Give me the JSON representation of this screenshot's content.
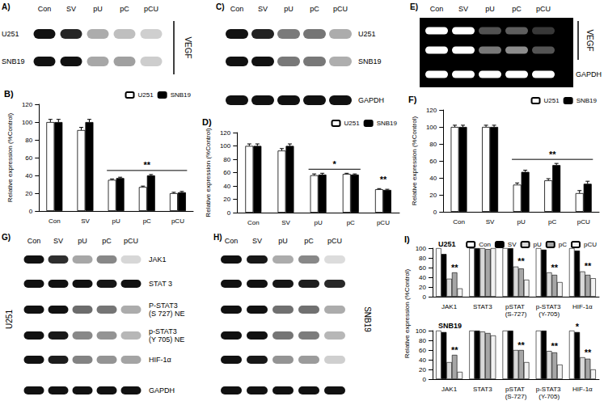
{
  "chart_data": [
    {
      "type": "bar",
      "title": "B)",
      "y_label": "Relative expression (%Control)",
      "categories": [
        "Con",
        "SV",
        "pU",
        "pC",
        "pCU"
      ],
      "series": [
        {
          "name": "U251",
          "color": "#ffffff",
          "values": [
            100,
            91,
            35,
            27,
            20
          ],
          "errors": [
            3,
            3,
            1,
            1,
            1
          ]
        },
        {
          "name": "SNB19",
          "color": "#000000",
          "values": [
            100,
            100,
            37,
            40,
            21
          ],
          "errors": [
            3,
            3,
            1,
            1,
            1
          ]
        }
      ],
      "ylim": [
        0,
        120
      ],
      "yticks": [
        0,
        20,
        40,
        60,
        80,
        100,
        120
      ],
      "grid": false,
      "legend": "upper right",
      "annotations": [
        {
          "text": "**",
          "from": "pU",
          "to": "pCU"
        }
      ]
    },
    {
      "type": "bar",
      "title": "D)",
      "y_label": "Relative expression (%Control)",
      "categories": [
        "Con",
        "SV",
        "pU",
        "pC",
        "pCU"
      ],
      "series": [
        {
          "name": "U251",
          "color": "#ffffff",
          "values": [
            100,
            93,
            56,
            58,
            35
          ],
          "errors": [
            3,
            3,
            2,
            1,
            1
          ]
        },
        {
          "name": "SNB19",
          "color": "#000000",
          "values": [
            100,
            100,
            57,
            57,
            34
          ],
          "errors": [
            3,
            3,
            2,
            1,
            1
          ]
        }
      ],
      "ylim": [
        0,
        120
      ],
      "yticks": [
        0,
        20,
        40,
        60,
        80,
        100,
        120
      ],
      "grid": false,
      "legend": "upper right",
      "annotations": [
        {
          "text": "*",
          "from": "pU",
          "to": "pC"
        },
        {
          "text": "**",
          "from": "pCU",
          "to": "pCU"
        }
      ]
    },
    {
      "type": "bar",
      "title": "F)",
      "y_label": "Relative expression (%Control)",
      "categories": [
        "Con",
        "SV",
        "pU",
        "pC",
        "pCU"
      ],
      "series": [
        {
          "name": "U251",
          "color": "#ffffff",
          "values": [
            100,
            100,
            32,
            37,
            22
          ],
          "errors": [
            2,
            2,
            2,
            2,
            3
          ]
        },
        {
          "name": "SNB19",
          "color": "#000000",
          "values": [
            100,
            100,
            47,
            55,
            33
          ],
          "errors": [
            2,
            2,
            2,
            2,
            3
          ]
        }
      ],
      "ylim": [
        0,
        120
      ],
      "yticks": [
        0,
        20,
        40,
        60,
        80,
        100,
        120
      ],
      "grid": false,
      "legend": "upper right",
      "annotations": [
        {
          "text": "**",
          "from": "pU",
          "to": "pCU"
        }
      ]
    },
    {
      "type": "bar",
      "title": "I)",
      "subtitle": "U251",
      "y_label": "Relative expression (%Control)",
      "categories": [
        "JAK1",
        "STAT3",
        "pSTAT (S-727)",
        "p-STAT3 (Y-705)",
        "HIF-1α"
      ],
      "series": [
        {
          "name": "Con",
          "color": "#ffffff",
          "values": [
            100,
            100,
            100,
            100,
            100
          ]
        },
        {
          "name": "SV",
          "color": "#000000",
          "values": [
            88,
            100,
            100,
            97,
            95
          ]
        },
        {
          "name": "pU",
          "color": "#d9d9d9",
          "values": [
            37,
            100,
            62,
            50,
            52
          ]
        },
        {
          "name": "pC",
          "color": "#a6a6a6",
          "values": [
            50,
            98,
            58,
            45,
            45
          ]
        },
        {
          "name": "pCU",
          "color": "#f2f2f2",
          "values": [
            17,
            100,
            35,
            30,
            38
          ]
        }
      ],
      "ylim": [
        0,
        100
      ],
      "yticks": [
        0,
        20,
        40,
        60,
        80,
        100
      ],
      "grid": false,
      "legend": "upper right",
      "annotations": [
        {
          "text": "**",
          "category": "JAK1",
          "series": [
            "pU",
            "pC",
            "pCU"
          ]
        },
        {
          "text": "**",
          "category": "pSTAT (S-727)",
          "series": [
            "pU",
            "pC",
            "pCU"
          ]
        },
        {
          "text": "**",
          "category": "p-STAT3 (Y-705)",
          "series": [
            "pU",
            "pC",
            "pCU"
          ]
        },
        {
          "text": "**",
          "category": "HIF-1α",
          "series": [
            "pU",
            "pC",
            "pCU"
          ]
        }
      ]
    },
    {
      "type": "bar",
      "subtitle": "SNB19",
      "categories": [
        "JAK1",
        "STAT3",
        "pSTAT (S-727)",
        "p-STAT3 (Y-705)",
        "HIF-1α"
      ],
      "series": [
        {
          "name": "Con",
          "color": "#ffffff",
          "values": [
            100,
            100,
            100,
            100,
            100
          ]
        },
        {
          "name": "SV",
          "color": "#000000",
          "values": [
            97,
            100,
            100,
            100,
            97
          ]
        },
        {
          "name": "pU",
          "color": "#d9d9d9",
          "values": [
            35,
            98,
            60,
            58,
            45
          ]
        },
        {
          "name": "pC",
          "color": "#a6a6a6",
          "values": [
            50,
            95,
            60,
            55,
            42
          ]
        },
        {
          "name": "pCU",
          "color": "#f2f2f2",
          "values": [
            15,
            90,
            35,
            30,
            20
          ]
        }
      ],
      "ylim": [
        0,
        100
      ],
      "yticks": [
        0,
        20,
        40,
        60,
        80,
        100
      ],
      "grid": false,
      "annotations": [
        {
          "text": "**",
          "category": "JAK1",
          "series": [
            "pU",
            "pC",
            "pCU"
          ]
        },
        {
          "text": "**",
          "category": "pSTAT (S-727)",
          "series": [
            "pU",
            "pC",
            "pCU"
          ]
        },
        {
          "text": "**",
          "category": "p-STAT3 (Y-705)",
          "series": [
            "pU",
            "pC",
            "pCU"
          ]
        },
        {
          "text": "**",
          "category": "HIF-1α",
          "series": [
            "pU",
            "pC",
            "pCU"
          ]
        },
        {
          "text": "*",
          "category": "HIF-1α",
          "series": [
            "SV"
          ]
        }
      ]
    }
  ],
  "blots": [
    {
      "label": "A)",
      "lanes": [
        "Con",
        "SV",
        "pU",
        "pC",
        "pCU"
      ],
      "rows": [
        "U251",
        "SNB19"
      ],
      "target": "VEGF"
    },
    {
      "label": "C)",
      "lanes": [
        "Con",
        "SV",
        "pU",
        "pC",
        "pCU"
      ],
      "rows": [
        "U251",
        "SNB19",
        "GAPDH"
      ]
    },
    {
      "label": "E)",
      "lanes": [
        "Con",
        "SV",
        "pU",
        "pC",
        "pCU"
      ],
      "target": "VEGF",
      "control": "GAPDH"
    },
    {
      "label": "G)",
      "lanes": [
        "Con",
        "SV",
        "pU",
        "pC",
        "pCU"
      ],
      "cell_line": "U251",
      "rows": [
        "JAK1",
        "STAT 3",
        "P-STAT3 (S 727) NE",
        "p-STAT3 (Y 705) NE",
        "HIF-1α",
        "GAPDH"
      ]
    },
    {
      "label": "H)",
      "lanes": [
        "Con",
        "SV",
        "pU",
        "pC",
        "pCU"
      ],
      "cell_line": "SNB19"
    }
  ]
}
